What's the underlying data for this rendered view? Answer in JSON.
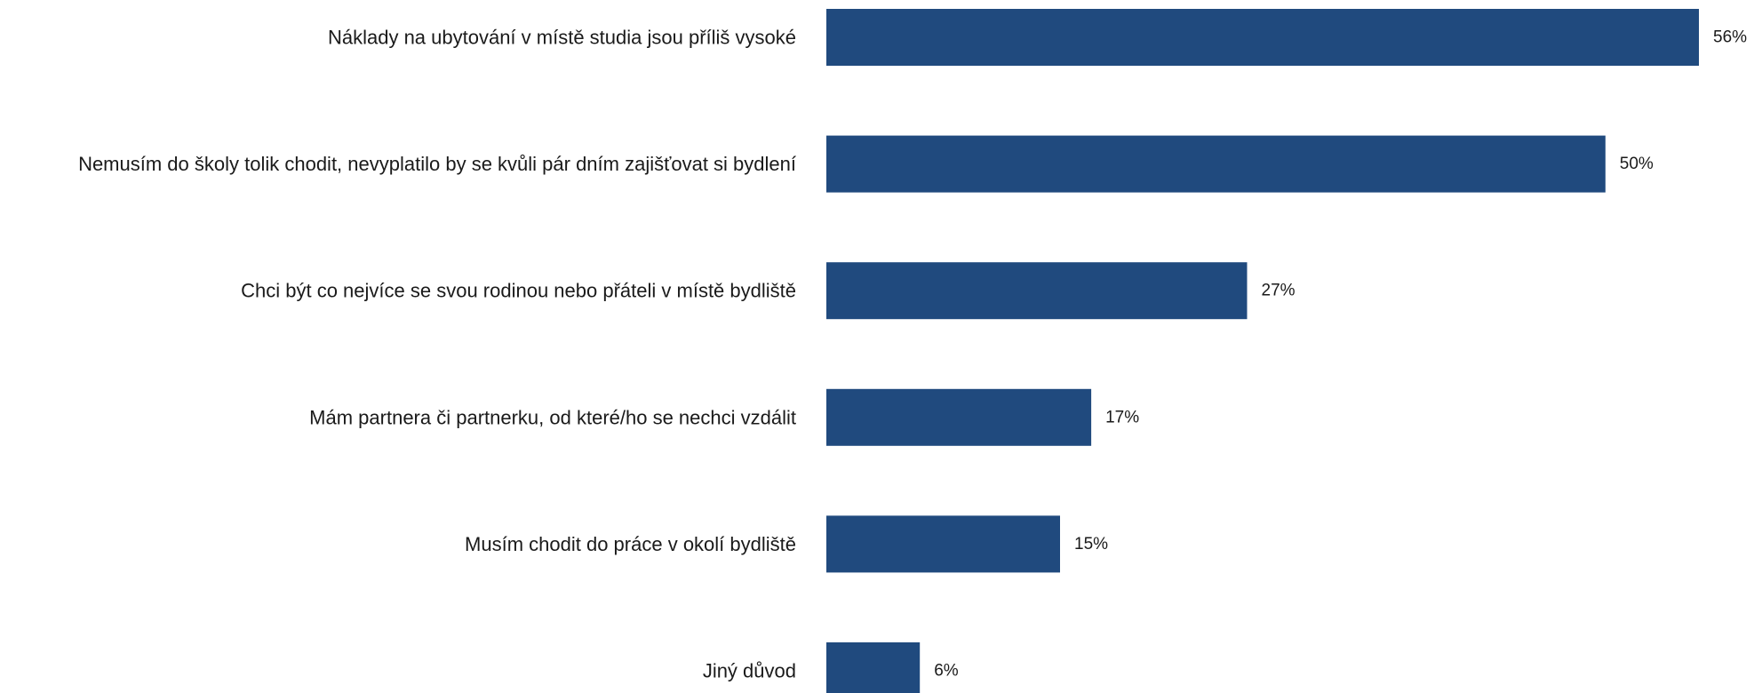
{
  "chart_data": {
    "type": "bar",
    "orientation": "horizontal",
    "categories": [
      "Náklady na ubytování v místě studia jsou příliš vysoké",
      "Nemusím do školy tolik chodit, nevyplatilo by se kvůli pár dním zajišťovat si bydlení",
      "Chci být co nejvíce se svou rodinou nebo přáteli v místě bydliště",
      "Mám partnera či partnerku, od které/ho se nechci vzdálit",
      "Musím chodit do práce v okolí bydliště",
      "Jiný důvod"
    ],
    "values": [
      56,
      50,
      27,
      17,
      15,
      6
    ],
    "value_labels": [
      "56%",
      "50%",
      "27%",
      "17%",
      "15%",
      "6%"
    ],
    "unit": "%",
    "xlim": [
      0,
      56
    ],
    "grid": false,
    "legend": "none",
    "bar_color": "#204a7e"
  }
}
